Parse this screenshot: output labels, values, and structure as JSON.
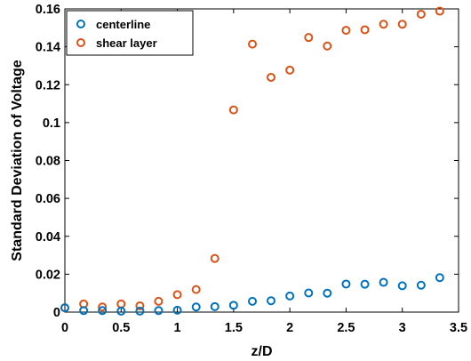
{
  "chart_data": {
    "type": "scatter",
    "title": "",
    "xlabel": "z/D",
    "ylabel": "Standard Deviation of Voltage",
    "xlim": [
      0,
      3.5
    ],
    "ylim": [
      0,
      0.16
    ],
    "xticks": [
      "0",
      "0.5",
      "1",
      "1.5",
      "2",
      "2.5",
      "3",
      "3.5"
    ],
    "yticks": [
      "0",
      "0.02",
      "0.04",
      "0.06",
      "0.08",
      "0.1",
      "0.12",
      "0.14",
      "0.16"
    ],
    "grid": false,
    "legend_position": "top-left",
    "series": [
      {
        "name": "centerline",
        "color": "#0072BD",
        "marker": "circle-open",
        "x": [
          0,
          0.167,
          0.333,
          0.5,
          0.667,
          0.833,
          1.0,
          1.167,
          1.333,
          1.5,
          1.667,
          1.833,
          2.0,
          2.167,
          2.333,
          2.5,
          2.667,
          2.833,
          3.0,
          3.167,
          3.333
        ],
        "y": [
          0.0023,
          0.0008,
          0.0008,
          0.0005,
          0.0005,
          0.0008,
          0.001,
          0.0027,
          0.0029,
          0.0036,
          0.0057,
          0.006,
          0.0085,
          0.0101,
          0.01,
          0.0148,
          0.0147,
          0.0157,
          0.0139,
          0.0142,
          0.0182
        ]
      },
      {
        "name": "shear layer",
        "color": "#D95319",
        "marker": "circle-open",
        "x": [
          0,
          0.167,
          0.333,
          0.5,
          0.667,
          0.833,
          1.0,
          1.167,
          1.333,
          1.5,
          1.667,
          1.833,
          2.0,
          2.167,
          2.333,
          2.5,
          2.667,
          2.833,
          3.0,
          3.167,
          3.333
        ],
        "y": [
          0.0023,
          0.0043,
          0.0027,
          0.0043,
          0.0033,
          0.0057,
          0.0092,
          0.0119,
          0.0283,
          0.1067,
          0.1414,
          0.1239,
          0.1277,
          0.1449,
          0.1404,
          0.1487,
          0.149,
          0.1519,
          0.1519,
          0.1572,
          0.1588
        ]
      }
    ]
  }
}
